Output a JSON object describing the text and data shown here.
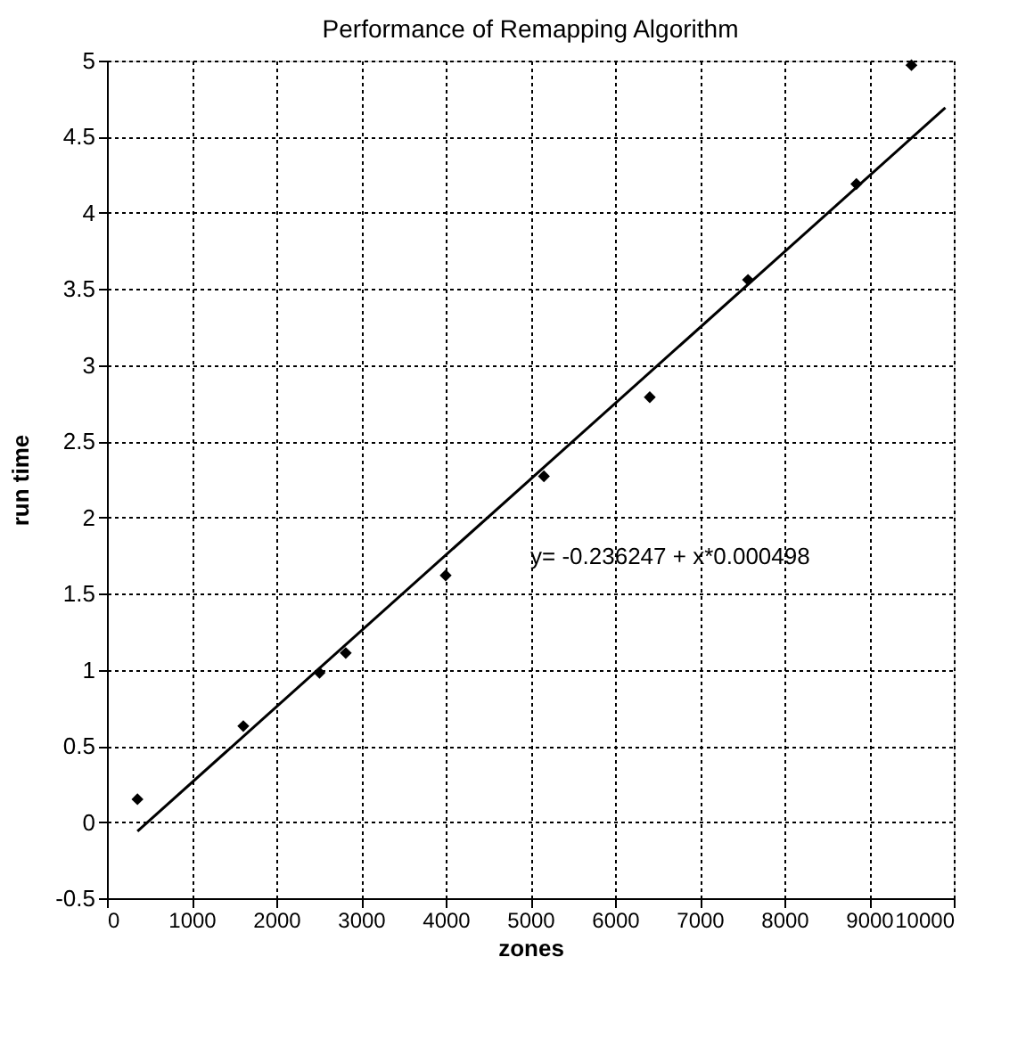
{
  "chart_data": {
    "type": "scatter",
    "title": "Performance of Remapping Algorithm",
    "xlabel": "zones",
    "ylabel": "run time",
    "xlim": [
      0,
      10000
    ],
    "xticks": [
      0,
      1000,
      2000,
      3000,
      4000,
      5000,
      6000,
      7000,
      8000,
      9000,
      10000
    ],
    "ylim": [
      -0.5,
      5
    ],
    "yticks": [
      -0.5,
      0,
      0.5,
      1,
      1.5,
      2,
      2.5,
      3,
      3.5,
      4,
      4.5,
      5
    ],
    "grid": true,
    "series": [
      {
        "marker": "diamond",
        "color": "#000000",
        "x": [
          360,
          1610,
          2510,
          2820,
          4000,
          5160,
          6410,
          7570,
          8850,
          9500
        ],
        "values": [
          0.15,
          0.63,
          0.98,
          1.11,
          1.62,
          2.27,
          2.79,
          3.56,
          4.19,
          4.97
        ]
      },
      {
        "type": "line",
        "line_style": "solid",
        "color": "#000000",
        "x": [
          360,
          9900
        ],
        "values": [
          -0.06,
          4.69
        ]
      }
    ],
    "annotations": [
      "y=  -0.236247 + x*0.000498"
    ]
  }
}
